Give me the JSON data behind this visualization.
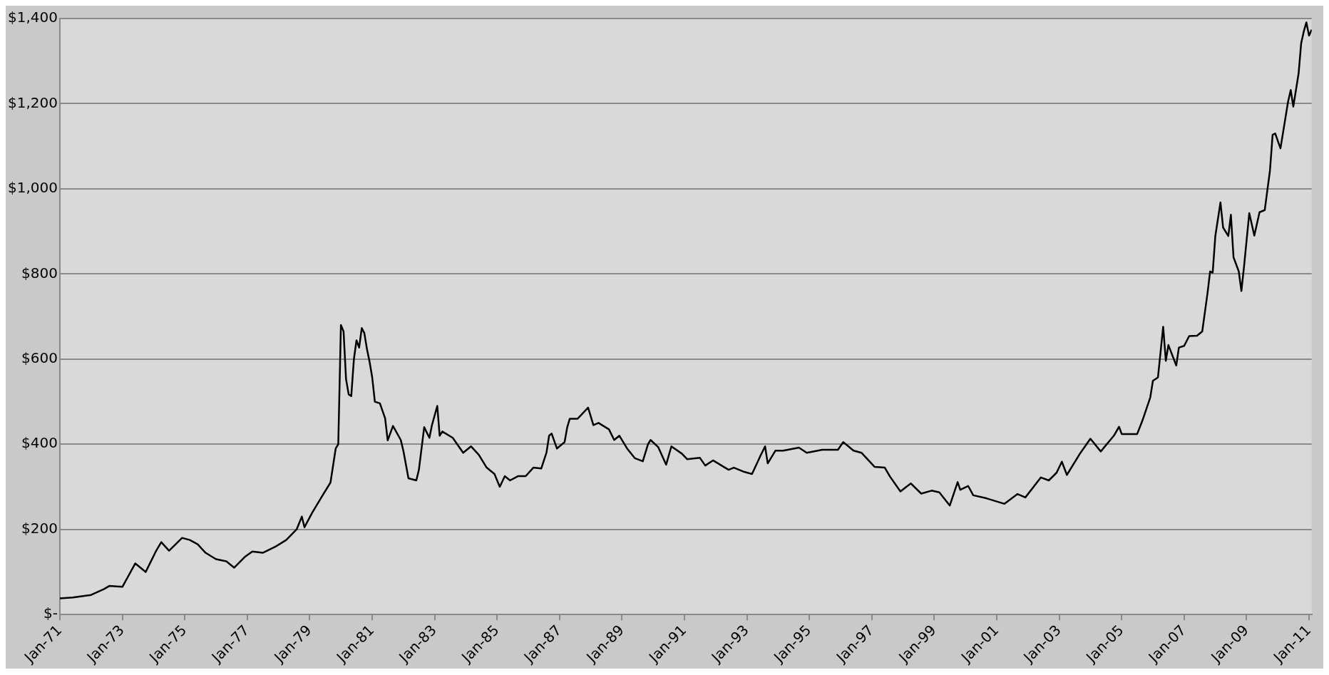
{
  "chart_data": {
    "type": "line",
    "color": "#000000",
    "grid": "y",
    "x": [
      "1971-01",
      "1971-06",
      "1972-01",
      "1972-06",
      "1972-08",
      "1973-01",
      "1973-06",
      "1973-10",
      "1974-02",
      "1974-04",
      "1974-07",
      "1974-12",
      "1975-03",
      "1975-06",
      "1975-09",
      "1976-01",
      "1976-05",
      "1976-08",
      "1976-12",
      "1977-03",
      "1977-07",
      "1977-12",
      "1978-04",
      "1978-08",
      "1978-10",
      "1978-11",
      "1979-02",
      "1979-06",
      "1979-09",
      "1979-11",
      "1979-12",
      "1980-01",
      "1980-02",
      "1980-03",
      "1980-04",
      "1980-05",
      "1980-06",
      "1980-07",
      "1980-08",
      "1980-09",
      "1980-10",
      "1980-11",
      "1980-12",
      "1981-01",
      "1981-02",
      "1981-04",
      "1981-06",
      "1981-07",
      "1981-09",
      "1981-12",
      "1982-01",
      "1982-03",
      "1982-06",
      "1982-07",
      "1982-09",
      "1982-11",
      "1982-12",
      "1983-02",
      "1983-03",
      "1983-04",
      "1983-08",
      "1983-12",
      "1984-03",
      "1984-06",
      "1984-09",
      "1984-12",
      "1985-02",
      "1985-04",
      "1985-06",
      "1985-09",
      "1985-12",
      "1986-03",
      "1986-06",
      "1986-08",
      "1986-09",
      "1986-10",
      "1986-12",
      "1987-03",
      "1987-04",
      "1987-05",
      "1987-08",
      "1987-12",
      "1988-02",
      "1988-04",
      "1988-08",
      "1988-10",
      "1988-12",
      "1989-03",
      "1989-06",
      "1989-09",
      "1989-11",
      "1989-12",
      "1990-03",
      "1990-06",
      "1990-08",
      "1990-12",
      "1991-02",
      "1991-07",
      "1991-09",
      "1991-12",
      "1992-06",
      "1992-08",
      "1992-12",
      "1993-03",
      "1993-06",
      "1993-08",
      "1993-09",
      "1993-12",
      "1994-03",
      "1994-09",
      "1994-12",
      "1995-06",
      "1995-12",
      "1996-02",
      "1996-06",
      "1996-09",
      "1997-02",
      "1997-06",
      "1997-08",
      "1997-12",
      "1998-04",
      "1998-08",
      "1998-12",
      "1999-03",
      "1999-07",
      "1999-10",
      "1999-11",
      "2000-02",
      "2000-04",
      "2000-09",
      "2001-04",
      "2001-09",
      "2001-12",
      "2002-06",
      "2002-09",
      "2002-12",
      "2003-02",
      "2003-04",
      "2003-09",
      "2004-01",
      "2004-05",
      "2004-10",
      "2004-12",
      "2005-01",
      "2005-07",
      "2005-09",
      "2005-12",
      "2006-01",
      "2006-03",
      "2006-05",
      "2006-06",
      "2006-07",
      "2006-10",
      "2006-11",
      "2007-01",
      "2007-03",
      "2007-06",
      "2007-08",
      "2007-10",
      "2007-11",
      "2007-12",
      "2008-01",
      "2008-03",
      "2008-04",
      "2008-06",
      "2008-07",
      "2008-08",
      "2008-10",
      "2008-11",
      "2008-12",
      "2009-02",
      "2009-04",
      "2009-06",
      "2009-08",
      "2009-10",
      "2009-11",
      "2009-12",
      "2010-02",
      "2010-05",
      "2010-06",
      "2010-07",
      "2010-09",
      "2010-10",
      "2010-11",
      "2010-12",
      "2011-01",
      "2011-02"
    ],
    "values": [
      38,
      40,
      46,
      60,
      67,
      65,
      120,
      100,
      150,
      170,
      150,
      180,
      175,
      165,
      145,
      130,
      125,
      110,
      135,
      148,
      145,
      160,
      175,
      200,
      230,
      205,
      240,
      280,
      310,
      390,
      400,
      680,
      665,
      553,
      517,
      513,
      600,
      644,
      627,
      673,
      661,
      623,
      594,
      557,
      500,
      496,
      461,
      409,
      443,
      410,
      384,
      320,
      315,
      340,
      440,
      415,
      445,
      490,
      420,
      430,
      415,
      380,
      395,
      375,
      345,
      330,
      300,
      325,
      315,
      325,
      325,
      345,
      343,
      380,
      420,
      425,
      390,
      405,
      440,
      460,
      460,
      486,
      445,
      450,
      435,
      410,
      420,
      390,
      367,
      360,
      400,
      410,
      393,
      352,
      395,
      378,
      365,
      368,
      350,
      362,
      340,
      345,
      335,
      330,
      370,
      395,
      355,
      385,
      385,
      392,
      380,
      387,
      387,
      405,
      385,
      380,
      347,
      345,
      324,
      289,
      308,
      284,
      291,
      287,
      256,
      311,
      293,
      302,
      280,
      273,
      260,
      283,
      275,
      322,
      315,
      333,
      359,
      328,
      378,
      413,
      383,
      420,
      441,
      424,
      424,
      456,
      510,
      549,
      557,
      676,
      596,
      633,
      585,
      627,
      631,
      654,
      655,
      665,
      754,
      806,
      803,
      889,
      968,
      909,
      889,
      939,
      839,
      806,
      760,
      816,
      943,
      890,
      945,
      950,
      1043,
      1127,
      1130,
      1095,
      1205,
      1232,
      1193,
      1271,
      1342,
      1370,
      1391,
      1360,
      1374
    ],
    "xlim": [
      "1971-01",
      "2011-02"
    ],
    "xticks": [
      {
        "value": "1971-01",
        "label": "Jan-71"
      },
      {
        "value": "1973-01",
        "label": "Jan-73"
      },
      {
        "value": "1975-01",
        "label": "Jan-75"
      },
      {
        "value": "1977-01",
        "label": "Jan-77"
      },
      {
        "value": "1979-01",
        "label": "Jan-79"
      },
      {
        "value": "1981-01",
        "label": "Jan-81"
      },
      {
        "value": "1983-01",
        "label": "Jan-83"
      },
      {
        "value": "1985-01",
        "label": "Jan-85"
      },
      {
        "value": "1987-01",
        "label": "Jan-87"
      },
      {
        "value": "1989-01",
        "label": "Jan-89"
      },
      {
        "value": "1991-01",
        "label": "Jan-91"
      },
      {
        "value": "1993-01",
        "label": "Jan-93"
      },
      {
        "value": "1995-01",
        "label": "Jan-95"
      },
      {
        "value": "1997-01",
        "label": "Jan-97"
      },
      {
        "value": "1999-01",
        "label": "Jan-99"
      },
      {
        "value": "2001-01",
        "label": "Jan-01"
      },
      {
        "value": "2003-01",
        "label": "Jan-03"
      },
      {
        "value": "2005-01",
        "label": "Jan-05"
      },
      {
        "value": "2007-01",
        "label": "Jan-07"
      },
      {
        "value": "2009-01",
        "label": "Jan-09"
      },
      {
        "value": "2011-01",
        "label": "Jan-11"
      }
    ],
    "ylim": [
      0,
      1400
    ],
    "yticks": [
      {
        "value": 0,
        "label": "$-"
      },
      {
        "value": 200,
        "label": "$200"
      },
      {
        "value": 400,
        "label": "$400"
      },
      {
        "value": 600,
        "label": "$600"
      },
      {
        "value": 800,
        "label": "$800"
      },
      {
        "value": 1000,
        "label": "$1,000"
      },
      {
        "value": 1200,
        "label": "$1,200"
      },
      {
        "value": 1400,
        "label": "$1,400"
      }
    ]
  }
}
